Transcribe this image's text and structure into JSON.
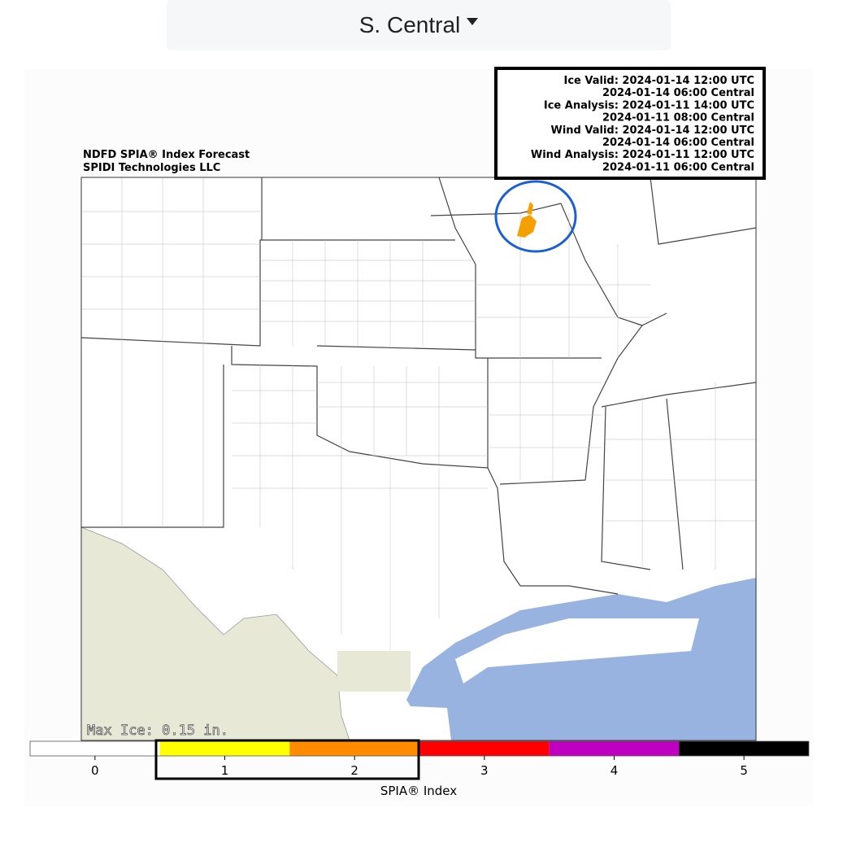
{
  "dropdown": {
    "label": "S. Central"
  },
  "map": {
    "title": "NDFD SPIA® Index Forecast",
    "subtitle": "SPIDI Technologies LLC",
    "info_lines": [
      "Ice Valid: 2024-01-14 12:00 UTC",
      "2024-01-14 06:00 Central",
      "Ice Analysis: 2024-01-11 14:00 UTC",
      "2024-01-11 08:00 Central",
      "Wind Valid: 2024-01-14 12:00 UTC",
      "2024-01-14 06:00 Central",
      "Wind Analysis: 2024-01-11 12:00 UTC",
      "2024-01-11 06:00 Central"
    ],
    "max_ice": "Max Ice: 0.15 in."
  },
  "colorbar": {
    "label": "SPIA® Index",
    "ticks": [
      0,
      1,
      2,
      3,
      4,
      5
    ],
    "colors": [
      "#ffffff",
      "#ffff00",
      "#ff8c00",
      "#ff0000",
      "#c000c0",
      "#000000"
    ]
  }
}
